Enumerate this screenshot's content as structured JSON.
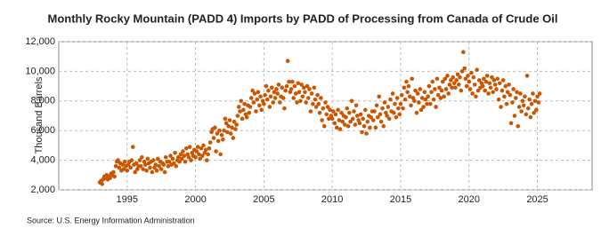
{
  "chart_data": {
    "type": "scatter",
    "title": "Monthly Rocky Mountain (PADD 4) Imports by PADD of Processing from Canada of Crude Oil",
    "y_label": "Thousand Barrels",
    "source": "Source: U.S. Energy Information Administration",
    "color": "#cc5500",
    "grid": true,
    "xlim": [
      1990,
      2029
    ],
    "xticks": [
      1995,
      2000,
      2005,
      2010,
      2015,
      2020,
      2025
    ],
    "ylim": [
      2000,
      12000
    ],
    "yticks": [
      {
        "value": 2000,
        "label": "2,000"
      },
      {
        "value": 4000,
        "label": "4,000"
      },
      {
        "value": 6000,
        "label": "6,000"
      },
      {
        "value": 8000,
        "label": "8,000"
      },
      {
        "value": 10000,
        "label": "10,000"
      },
      {
        "value": 12000,
        "label": "12,000"
      }
    ],
    "x": [
      1993,
      1993.08,
      1993.17,
      1993.25,
      1993.33,
      1993.42,
      1993.5,
      1993.58,
      1993.67,
      1993.75,
      1993.83,
      1993.92,
      1994,
      1994.08,
      1994.17,
      1994.25,
      1994.33,
      1994.42,
      1994.5,
      1994.58,
      1994.67,
      1994.75,
      1994.83,
      1994.92,
      1995,
      1995.08,
      1995.17,
      1995.25,
      1995.33,
      1995.42,
      1995.5,
      1995.58,
      1995.67,
      1995.75,
      1995.83,
      1995.92,
      1996,
      1996.08,
      1996.17,
      1996.25,
      1996.33,
      1996.42,
      1996.5,
      1996.58,
      1996.67,
      1996.75,
      1996.83,
      1996.92,
      1997,
      1997.08,
      1997.17,
      1997.25,
      1997.33,
      1997.42,
      1997.5,
      1997.58,
      1997.67,
      1997.75,
      1997.83,
      1997.92,
      1998,
      1998.08,
      1998.17,
      1998.25,
      1998.33,
      1998.42,
      1998.5,
      1998.58,
      1998.67,
      1998.75,
      1998.83,
      1998.92,
      1999,
      1999.08,
      1999.17,
      1999.25,
      1999.33,
      1999.42,
      1999.5,
      1999.58,
      1999.67,
      1999.75,
      1999.83,
      1999.92,
      2000,
      2000.08,
      2000.17,
      2000.25,
      2000.33,
      2000.42,
      2000.5,
      2000.58,
      2000.67,
      2000.75,
      2000.83,
      2000.92,
      2001,
      2001.08,
      2001.17,
      2001.25,
      2001.33,
      2001.42,
      2001.5,
      2001.58,
      2001.67,
      2001.75,
      2001.83,
      2001.92,
      2002,
      2002.08,
      2002.17,
      2002.25,
      2002.33,
      2002.42,
      2002.5,
      2002.58,
      2002.67,
      2002.75,
      2002.83,
      2002.92,
      2003,
      2003.08,
      2003.17,
      2003.25,
      2003.33,
      2003.42,
      2003.5,
      2003.58,
      2003.67,
      2003.75,
      2003.83,
      2003.92,
      2004,
      2004.08,
      2004.17,
      2004.25,
      2004.33,
      2004.42,
      2004.5,
      2004.58,
      2004.67,
      2004.75,
      2004.83,
      2004.92,
      2005,
      2005.08,
      2005.17,
      2005.25,
      2005.33,
      2005.42,
      2005.5,
      2005.58,
      2005.67,
      2005.75,
      2005.83,
      2005.92,
      2006,
      2006.08,
      2006.17,
      2006.25,
      2006.33,
      2006.42,
      2006.5,
      2006.58,
      2006.67,
      2006.75,
      2006.83,
      2006.92,
      2007,
      2007.08,
      2007.17,
      2007.25,
      2007.33,
      2007.42,
      2007.5,
      2007.58,
      2007.67,
      2007.75,
      2007.83,
      2007.92,
      2008,
      2008.08,
      2008.17,
      2008.25,
      2008.33,
      2008.42,
      2008.5,
      2008.58,
      2008.67,
      2008.75,
      2008.83,
      2008.92,
      2009,
      2009.08,
      2009.17,
      2009.25,
      2009.33,
      2009.42,
      2009.5,
      2009.58,
      2009.67,
      2009.75,
      2009.83,
      2009.92,
      2010,
      2010.08,
      2010.17,
      2010.25,
      2010.33,
      2010.42,
      2010.5,
      2010.58,
      2010.67,
      2010.75,
      2010.83,
      2010.92,
      2011,
      2011.08,
      2011.17,
      2011.25,
      2011.33,
      2011.42,
      2011.5,
      2011.58,
      2011.67,
      2011.75,
      2011.83,
      2011.92,
      2012,
      2012.08,
      2012.17,
      2012.25,
      2012.33,
      2012.42,
      2012.5,
      2012.58,
      2012.67,
      2012.75,
      2012.83,
      2012.92,
      2013,
      2013.08,
      2013.17,
      2013.25,
      2013.33,
      2013.42,
      2013.5,
      2013.58,
      2013.67,
      2013.75,
      2013.83,
      2013.92,
      2014,
      2014.08,
      2014.17,
      2014.25,
      2014.33,
      2014.42,
      2014.5,
      2014.58,
      2014.67,
      2014.75,
      2014.83,
      2014.92,
      2015,
      2015.08,
      2015.17,
      2015.25,
      2015.33,
      2015.42,
      2015.5,
      2015.58,
      2015.67,
      2015.75,
      2015.83,
      2015.92,
      2016,
      2016.08,
      2016.17,
      2016.25,
      2016.33,
      2016.42,
      2016.5,
      2016.58,
      2016.67,
      2016.75,
      2016.83,
      2016.92,
      2017,
      2017.08,
      2017.17,
      2017.25,
      2017.33,
      2017.42,
      2017.5,
      2017.58,
      2017.67,
      2017.75,
      2017.83,
      2017.92,
      2018,
      2018.08,
      2018.17,
      2018.25,
      2018.33,
      2018.42,
      2018.5,
      2018.58,
      2018.67,
      2018.75,
      2018.83,
      2018.92,
      2019,
      2019.08,
      2019.17,
      2019.25,
      2019.33,
      2019.42,
      2019.5,
      2019.58,
      2019.67,
      2019.75,
      2019.83,
      2019.92,
      2020,
      2020.08,
      2020.17,
      2020.25,
      2020.33,
      2020.42,
      2020.5,
      2020.58,
      2020.67,
      2020.75,
      2020.83,
      2020.92,
      2021,
      2021.08,
      2021.17,
      2021.25,
      2021.33,
      2021.42,
      2021.5,
      2021.58,
      2021.67,
      2021.75,
      2021.83,
      2021.92,
      2022,
      2022.08,
      2022.17,
      2022.25,
      2022.33,
      2022.42,
      2022.5,
      2022.58,
      2022.67,
      2022.75,
      2022.83,
      2022.92,
      2023,
      2023.08,
      2023.17,
      2023.25,
      2023.33,
      2023.42,
      2023.5,
      2023.58,
      2023.67,
      2023.75,
      2023.83,
      2023.92,
      2024,
      2024.08,
      2024.17,
      2024.25,
      2024.33,
      2024.42,
      2024.5,
      2024.58,
      2024.67,
      2024.75,
      2024.83,
      2024.92,
      2025,
      2025.08,
      2025.17
    ],
    "values": [
      2500,
      2600,
      2400,
      2700,
      2900,
      2800,
      3000,
      2700,
      2900,
      2800,
      3100,
      3000,
      3200,
      2900,
      3600,
      3900,
      4000,
      3500,
      3800,
      3300,
      3700,
      3400,
      3900,
      3600,
      3300,
      3700,
      3900,
      3500,
      4000,
      4900,
      3700,
      3200,
      3800,
      3400,
      3600,
      4000,
      3600,
      4200,
      3400,
      3900,
      3700,
      3300,
      4100,
      3800,
      3500,
      3900,
      3200,
      4000,
      3500,
      3700,
      3300,
      4100,
      3600,
      3900,
      3400,
      3800,
      3700,
      3200,
      4200,
      3900,
      3600,
      3900,
      4300,
      3700,
      4100,
      3800,
      4500,
      3600,
      4000,
      4200,
      3900,
      4400,
      4100,
      4600,
      4300,
      3900,
      4800,
      4400,
      4200,
      4900,
      4000,
      4500,
      4300,
      4700,
      4200,
      4600,
      4900,
      4400,
      4100,
      4800,
      4300,
      5000,
      4500,
      4700,
      4000,
      4400,
      4800,
      5200,
      5900,
      6100,
      5500,
      6200,
      4600,
      5800,
      5300,
      6000,
      4400,
      5700,
      5400,
      6000,
      6800,
      6500,
      5900,
      6300,
      6700,
      5800,
      6200,
      5500,
      6600,
      6100,
      6400,
      7000,
      7600,
      7300,
      8000,
      6800,
      7400,
      7800,
      7100,
      6900,
      7700,
      7200,
      7600,
      8200,
      8700,
      7900,
      8500,
      7300,
      8100,
      8600,
      7700,
      8300,
      7400,
      8000,
      7800,
      8400,
      9000,
      8100,
      8700,
      7600,
      8300,
      8900,
      7900,
      8600,
      8200,
      8800,
      8500,
      9100,
      7900,
      8300,
      8900,
      8200,
      7500,
      8700,
      9000,
      10700,
      9300,
      8600,
      8800,
      9300,
      8200,
      9000,
      8500,
      7900,
      9200,
      8600,
      8000,
      9100,
      8300,
      8900,
      8600,
      7900,
      9000,
      8200,
      8800,
      7300,
      8500,
      7800,
      8900,
      8100,
      7600,
      8400,
      7800,
      7200,
      8200,
      6700,
      7500,
      6300,
      7900,
      7100,
      7600,
      6800,
      7400,
      7000,
      6800,
      7300,
      6500,
      7100,
      6200,
      7400,
      6700,
      6100,
      7200,
      6600,
      7000,
      6400,
      6900,
      7500,
      6300,
      7200,
      6600,
      8000,
      6800,
      7300,
      6400,
      7700,
      7000,
      6700,
      6500,
      7100,
      5900,
      6800,
      6300,
      7400,
      5800,
      6600,
      7000,
      6200,
      6900,
      7300,
      6700,
      7300,
      6200,
      7700,
      6900,
      8300,
      7100,
      6600,
      7500,
      6300,
      7900,
      7200,
      7000,
      7600,
      6800,
      8100,
      7300,
      8500,
      7200,
      7800,
      6900,
      8200,
      7500,
      7100,
      7800,
      8400,
      7500,
      8900,
      8100,
      9300,
      8600,
      9000,
      8300,
      7700,
      9500,
      8200,
      8000,
      8700,
      7200,
      8500,
      7900,
      8800,
      7400,
      8200,
      7600,
      8600,
      8100,
      7800,
      8300,
      9000,
      7800,
      8600,
      9300,
      8100,
      8800,
      7600,
      9500,
      8400,
      8900,
      8200,
      8700,
      9300,
      8300,
      9500,
      8800,
      9700,
      8500,
      9100,
      9400,
      8900,
      9600,
      9200,
      8900,
      9400,
      9800,
      9100,
      9600,
      8700,
      10000,
      11300,
      10200,
      9500,
      9000,
      9700,
      9300,
      8800,
      9900,
      8500,
      9600,
      9100,
      8300,
      10100,
      8700,
      9400,
      8900,
      9200,
      9000,
      9500,
      8700,
      9300,
      9700,
      8500,
      9200,
      8900,
      9600,
      8600,
      9400,
      9100,
      8800,
      9500,
      8100,
      9200,
      7600,
      8700,
      9400,
      8300,
      9000,
      7800,
      8600,
      9100,
      8400,
      6500,
      7900,
      8800,
      7000,
      8200,
      8600,
      6300,
      7600,
      8500,
      7300,
      8000,
      7700,
      8300,
      7100,
      9700,
      7500,
      8100,
      6900,
      7800,
      8500,
      7200,
      8000,
      7400,
      8300,
      7900,
      8500
    ]
  }
}
